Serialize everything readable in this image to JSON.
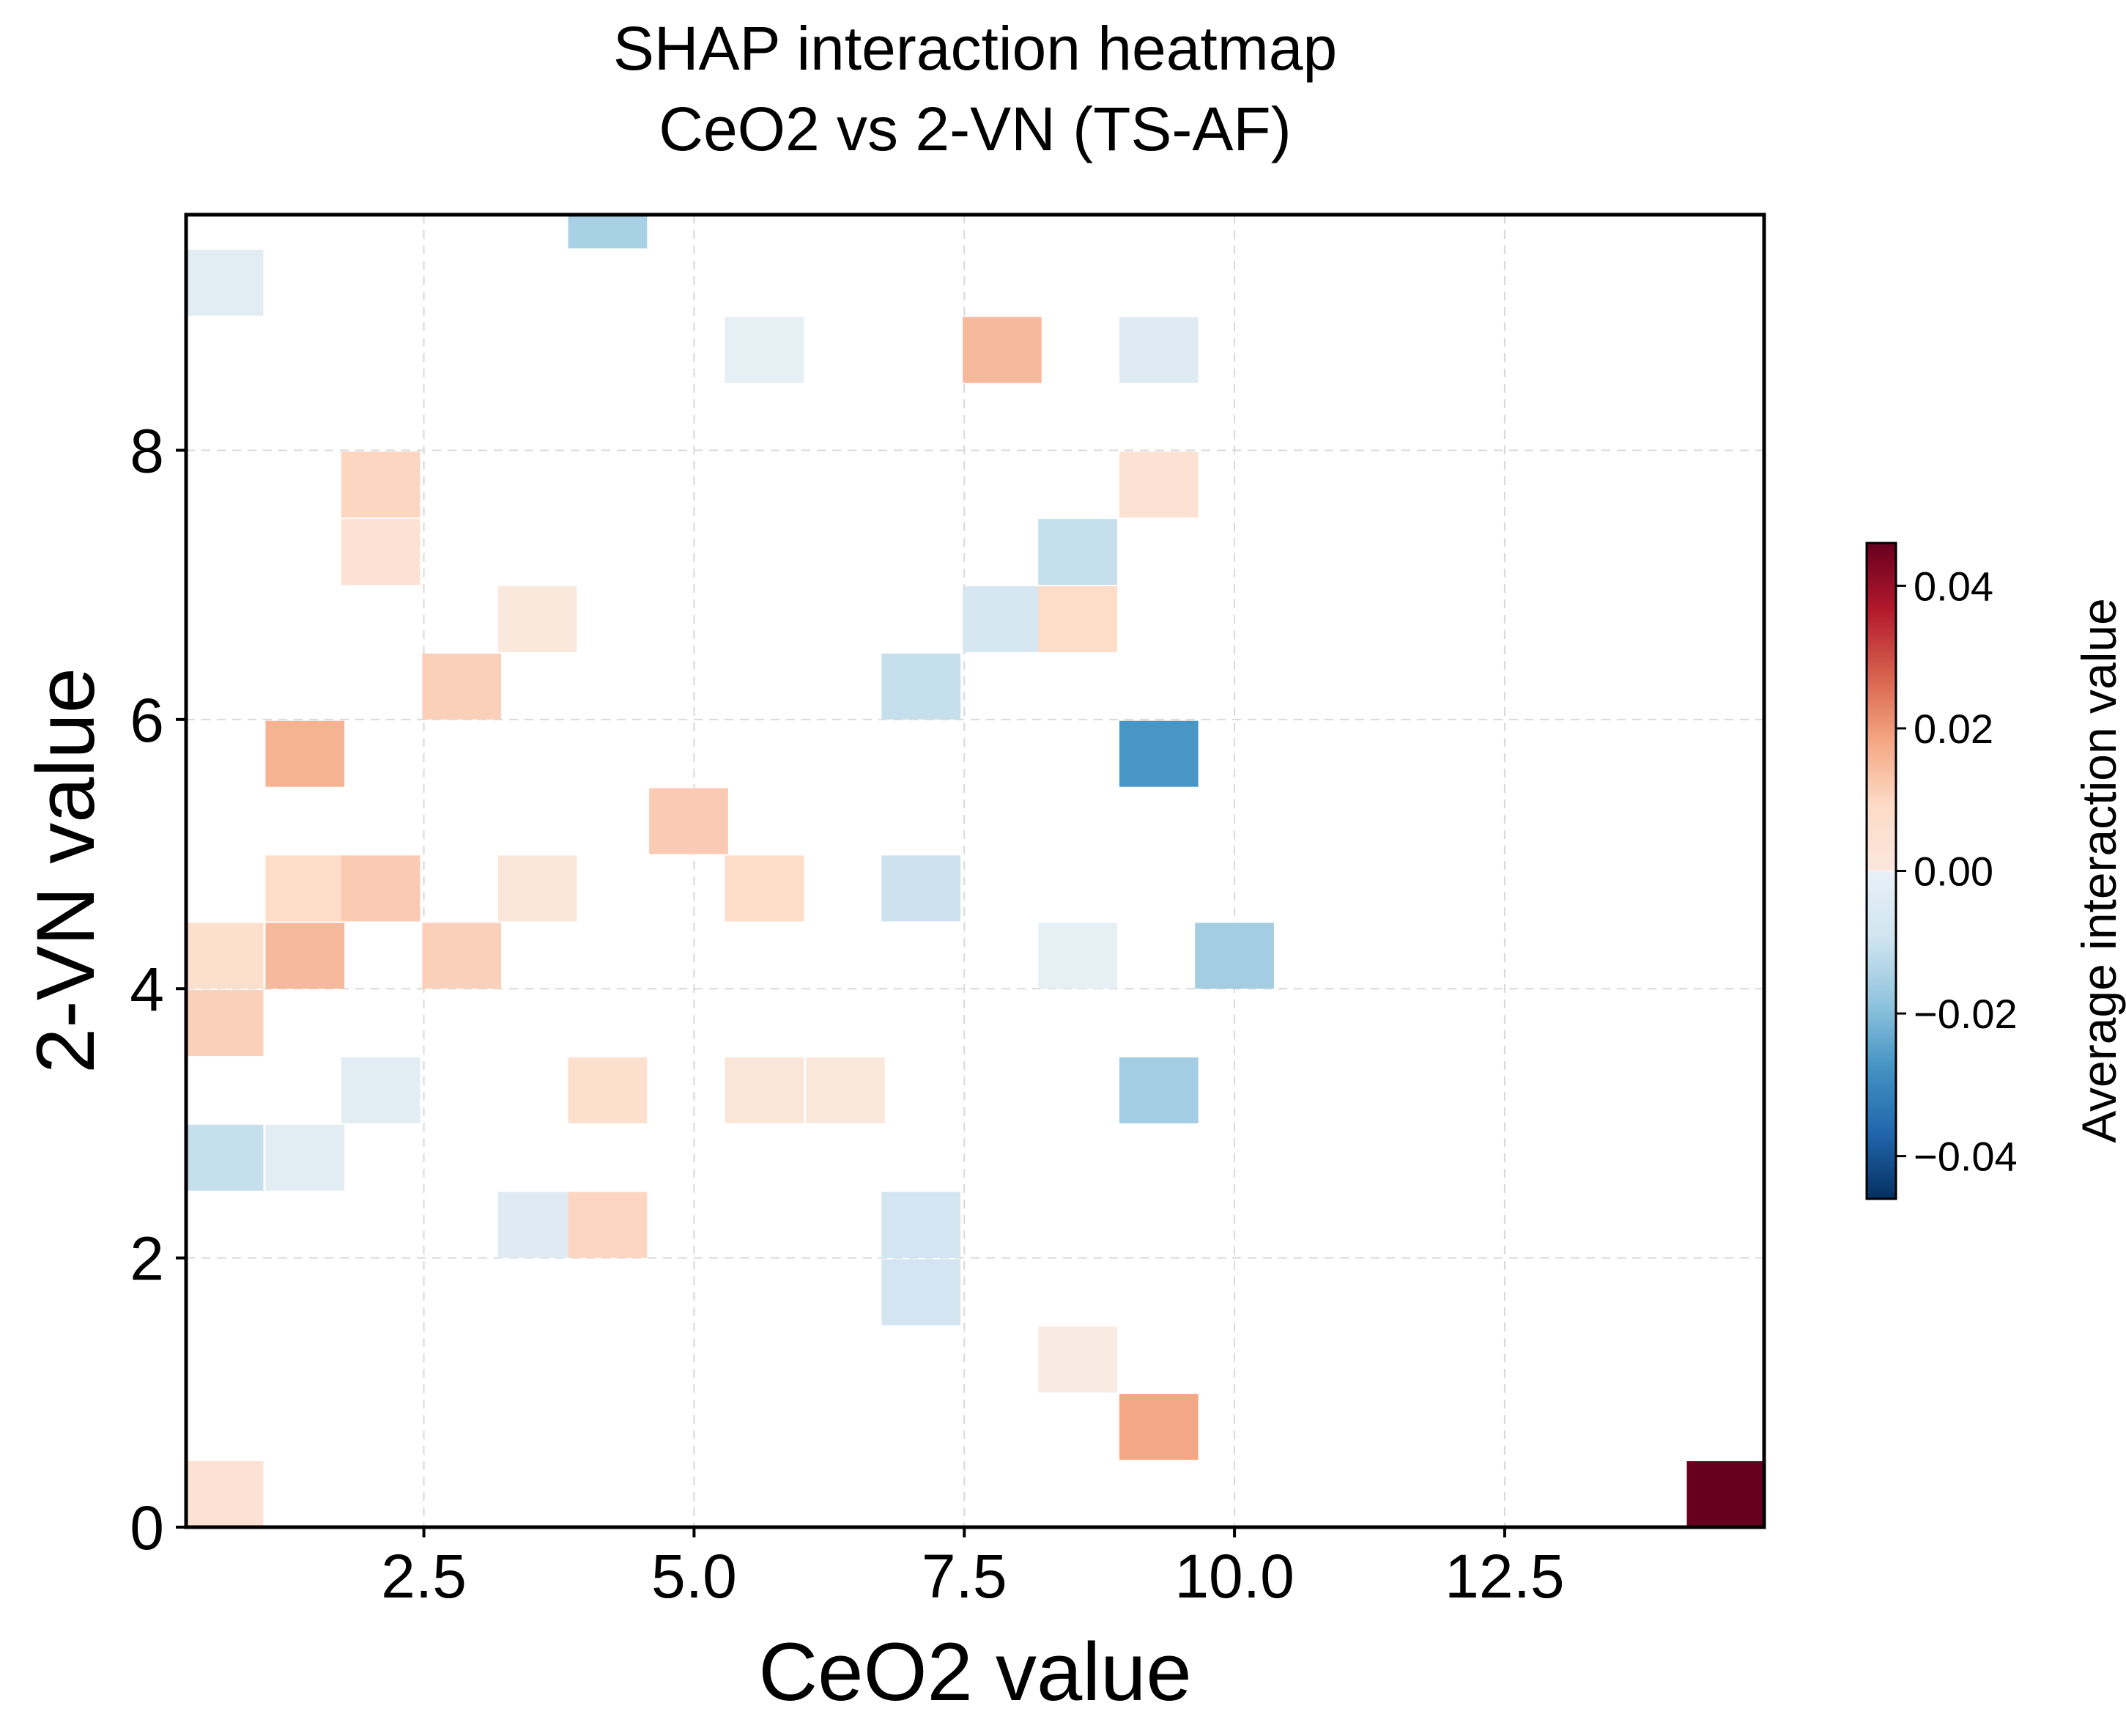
{
  "chart_data": {
    "type": "heatmap",
    "title_line1": "SHAP interaction heatmap",
    "title_line2": "CeO2 vs 2-VN (TS-AF)",
    "xlabel": "CeO2 value",
    "ylabel": "2-VN value",
    "colorbar_label": "Average interaction value",
    "xlim": [
      0.3,
      14.9
    ],
    "ylim": [
      0,
      9.75
    ],
    "x_ticks": [
      2.5,
      5.0,
      7.5,
      10.0,
      12.5
    ],
    "x_tick_labels": [
      "2.5",
      "5.0",
      "7.5",
      "10.0",
      "12.5"
    ],
    "y_ticks": [
      0,
      2,
      4,
      6,
      8
    ],
    "y_tick_labels": [
      "0",
      "2",
      "4",
      "6",
      "8"
    ],
    "colorbar_ticks": [
      0.04,
      0.02,
      0.0,
      -0.02,
      -0.04
    ],
    "colorbar_tick_labels": [
      "0.04",
      "0.02",
      "0.00",
      "−0.02",
      "−0.04"
    ],
    "color_range": [
      -0.046,
      0.046
    ],
    "colormap": [
      "#053061",
      "#2166ac",
      "#4393c3",
      "#92c5de",
      "#d1e5f0",
      "#f7f7f7",
      "#fddbc7",
      "#f4a582",
      "#d6604d",
      "#b2182b",
      "#67001f"
    ],
    "grid": true,
    "cell_width": 0.73,
    "cell_height": 0.49,
    "cells": [
      {
        "x": 4.2,
        "y": 9.5,
        "value": -0.015
      },
      {
        "x": 0.65,
        "y": 9.0,
        "value": -0.005
      },
      {
        "x": 5.65,
        "y": 8.5,
        "value": -0.004
      },
      {
        "x": 7.85,
        "y": 8.5,
        "value": 0.015
      },
      {
        "x": 9.3,
        "y": 8.5,
        "value": -0.006
      },
      {
        "x": 2.1,
        "y": 7.5,
        "value": 0.01
      },
      {
        "x": 9.3,
        "y": 7.5,
        "value": 0.007
      },
      {
        "x": 2.1,
        "y": 7.0,
        "value": 0.007
      },
      {
        "x": 8.55,
        "y": 7.0,
        "value": -0.011
      },
      {
        "x": 3.55,
        "y": 6.5,
        "value": 0.005
      },
      {
        "x": 7.85,
        "y": 6.5,
        "value": -0.008
      },
      {
        "x": 8.55,
        "y": 6.5,
        "value": 0.009
      },
      {
        "x": 2.85,
        "y": 6.0,
        "value": 0.011
      },
      {
        "x": 7.1,
        "y": 6.0,
        "value": -0.011
      },
      {
        "x": 1.4,
        "y": 5.5,
        "value": 0.016
      },
      {
        "x": 9.3,
        "y": 5.5,
        "value": -0.027
      },
      {
        "x": 4.95,
        "y": 5.0,
        "value": 0.012
      },
      {
        "x": 1.4,
        "y": 4.5,
        "value": 0.009
      },
      {
        "x": 2.1,
        "y": 4.5,
        "value": 0.012
      },
      {
        "x": 3.55,
        "y": 4.5,
        "value": 0.006
      },
      {
        "x": 5.65,
        "y": 4.5,
        "value": 0.009
      },
      {
        "x": 7.1,
        "y": 4.5,
        "value": -0.01
      },
      {
        "x": 0.65,
        "y": 4.0,
        "value": 0.008
      },
      {
        "x": 1.4,
        "y": 4.0,
        "value": 0.015
      },
      {
        "x": 2.85,
        "y": 4.0,
        "value": 0.011
      },
      {
        "x": 8.55,
        "y": 4.0,
        "value": -0.004
      },
      {
        "x": 10.0,
        "y": 4.0,
        "value": -0.016
      },
      {
        "x": 0.65,
        "y": 3.5,
        "value": 0.011
      },
      {
        "x": 2.1,
        "y": 3.0,
        "value": -0.005
      },
      {
        "x": 4.2,
        "y": 3.0,
        "value": 0.008
      },
      {
        "x": 5.65,
        "y": 3.0,
        "value": 0.006
      },
      {
        "x": 6.4,
        "y": 3.0,
        "value": 0.005
      },
      {
        "x": 9.3,
        "y": 3.0,
        "value": -0.016
      },
      {
        "x": 0.65,
        "y": 2.5,
        "value": -0.011
      },
      {
        "x": 1.4,
        "y": 2.5,
        "value": -0.005
      },
      {
        "x": 3.55,
        "y": 2.0,
        "value": -0.006
      },
      {
        "x": 4.2,
        "y": 2.0,
        "value": 0.01
      },
      {
        "x": 7.1,
        "y": 2.0,
        "value": -0.009
      },
      {
        "x": 7.1,
        "y": 1.5,
        "value": -0.009
      },
      {
        "x": 8.55,
        "y": 1.0,
        "value": 0.004
      },
      {
        "x": 9.3,
        "y": 0.5,
        "value": 0.018
      },
      {
        "x": 0.65,
        "y": 0.0,
        "value": 0.007
      },
      {
        "x": 14.55,
        "y": 0.0,
        "value": 0.046
      }
    ]
  }
}
